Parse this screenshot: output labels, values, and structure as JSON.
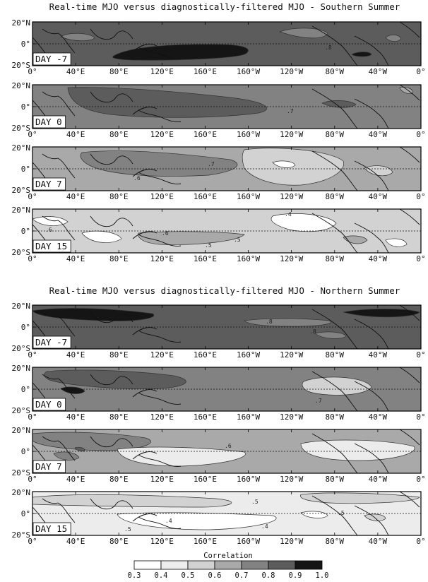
{
  "figure": {
    "sections": [
      {
        "title": "Real-time MJO versus diagnostically-filtered MJO - Southern Summer",
        "panels": [
          {
            "day_label": "DAY -7",
            "background": "0.8-0.9",
            "contour_labels": [
              ".8"
            ]
          },
          {
            "day_label": "DAY 0",
            "background": "0.7-0.8",
            "contour_labels": [
              ".7"
            ]
          },
          {
            "day_label": "DAY 7",
            "background": "0.6-0.7",
            "contour_labels": [
              ".7",
              ".6"
            ]
          },
          {
            "day_label": "DAY 15",
            "background": "0.5-0.6",
            "contour_labels": [
              ".6",
              ".6",
              ".5",
              ".4",
              ".5"
            ]
          }
        ]
      },
      {
        "title": "Real-time MJO versus diagnostically-filtered MJO - Northern Summer",
        "panels": [
          {
            "day_label": "DAY -7",
            "background": "0.8-0.9",
            "contour_labels": [
              ".8",
              ".8"
            ]
          },
          {
            "day_label": "DAY 0",
            "background": "0.7-0.8",
            "contour_labels": [
              ".7"
            ]
          },
          {
            "day_label": "DAY 7",
            "background": "0.6-0.7",
            "contour_labels": [
              ".6"
            ]
          },
          {
            "day_label": "DAY 15",
            "background": "0.4-0.5",
            "contour_labels": [
              ".5",
              ".4",
              ".4",
              ".5",
              ".5"
            ]
          }
        ]
      }
    ],
    "y_axis": {
      "ticks": [
        "20°N",
        "0°",
        "20°S"
      ]
    },
    "x_axis": {
      "ticks": [
        "0°",
        "40°E",
        "80°E",
        "120°E",
        "160°E",
        "160°W",
        "120°W",
        "80°W",
        "40°W",
        "0°"
      ]
    },
    "colorbar": {
      "title": "Correlation",
      "ticks": [
        "0.3",
        "0.4",
        "0.5",
        "0.6",
        "0.7",
        "0.8",
        "0.9",
        "1.0"
      ],
      "shades": [
        {
          "level": "0.3-0.4",
          "color": "#ffffff"
        },
        {
          "level": "0.4-0.5",
          "color": "#ececec"
        },
        {
          "level": "0.5-0.6",
          "color": "#d2d2d2"
        },
        {
          "level": "0.6-0.7",
          "color": "#a9a9a9"
        },
        {
          "level": "0.7-0.8",
          "color": "#828282"
        },
        {
          "level": "0.8-0.9",
          "color": "#5c5c5c"
        },
        {
          "level": "0.9-1.0",
          "color": "#151515"
        }
      ]
    }
  }
}
